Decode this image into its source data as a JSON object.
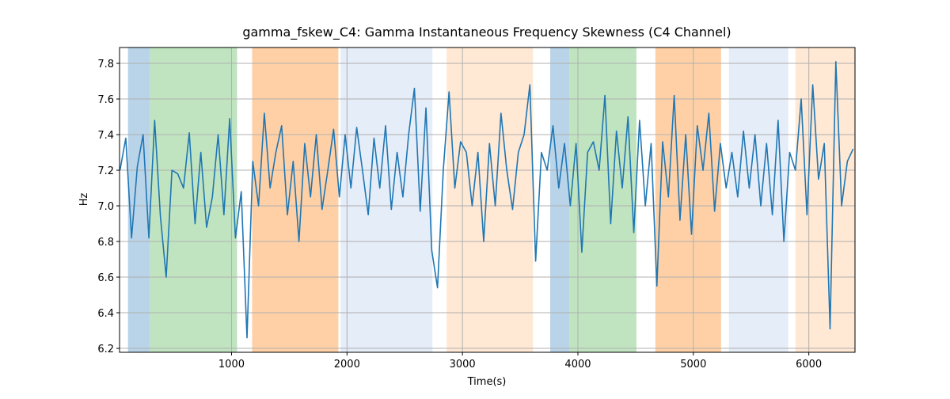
{
  "chart_data": {
    "type": "line",
    "title": "gamma_fskew_C4: Gamma Instantaneous Frequency Skewness (C4 Channel)",
    "x_label": "Time(s)",
    "y_label": "Hz",
    "xlim": [
      30,
      6400
    ],
    "ylim": [
      6.178,
      7.889
    ],
    "xticks": [
      1000,
      2000,
      3000,
      4000,
      5000,
      6000
    ],
    "yticks": [
      6.2,
      6.4,
      6.6,
      6.8,
      {
        "value": 7,
        "label": "7.0"
      },
      7.2,
      7.4,
      7.6,
      7.8
    ],
    "grid": true,
    "spans": [
      {
        "start": 103,
        "end": 295,
        "color": "#b9d4e9"
      },
      {
        "start": 295,
        "end": 1048,
        "color": "#c0e4c0"
      },
      {
        "start": 1178,
        "end": 1925,
        "color": "#ffd0a6"
      },
      {
        "start": 1945,
        "end": 2740,
        "color": "#e5edf8"
      },
      {
        "start": 2863,
        "end": 3610,
        "color": "#ffe8d4"
      },
      {
        "start": 3760,
        "end": 3925,
        "color": "#b9d4e9"
      },
      {
        "start": 3925,
        "end": 4507,
        "color": "#c0e4c0"
      },
      {
        "start": 4671,
        "end": 5240,
        "color": "#ffd0a6"
      },
      {
        "start": 5308,
        "end": 5822,
        "color": "#e5edf8"
      },
      {
        "start": 5884,
        "end": 6400,
        "color": "#ffe8d4"
      }
    ],
    "x": [
      34,
      84,
      134,
      184,
      234,
      284,
      334,
      384,
      434,
      484,
      534,
      584,
      634,
      684,
      734,
      784,
      834,
      884,
      934,
      984,
      1034,
      1084,
      1134,
      1184,
      1234,
      1284,
      1334,
      1384,
      1434,
      1484,
      1534,
      1584,
      1634,
      1684,
      1734,
      1784,
      1834,
      1884,
      1934,
      1984,
      2034,
      2084,
      2134,
      2184,
      2234,
      2284,
      2334,
      2384,
      2434,
      2484,
      2534,
      2584,
      2634,
      2684,
      2734,
      2784,
      2834,
      2884,
      2934,
      2984,
      3034,
      3084,
      3134,
      3184,
      3234,
      3284,
      3334,
      3384,
      3434,
      3484,
      3534,
      3584,
      3634,
      3684,
      3734,
      3784,
      3834,
      3884,
      3934,
      3984,
      4034,
      4084,
      4134,
      4184,
      4234,
      4284,
      4334,
      4384,
      4434,
      4484,
      4534,
      4584,
      4634,
      4684,
      4734,
      4784,
      4834,
      4884,
      4934,
      4984,
      5034,
      5084,
      5134,
      5184,
      5234,
      5284,
      5334,
      5384,
      5434,
      5484,
      5534,
      5584,
      5634,
      5684,
      5734,
      5784,
      5834,
      5884,
      5934,
      5984,
      6034,
      6084,
      6134,
      6184,
      6234,
      6284,
      6334,
      6384
    ],
    "series": [
      {
        "color": "#1f77b4",
        "values": [
          7.2,
          7.38,
          6.82,
          7.22,
          7.4,
          6.82,
          7.48,
          6.94,
          6.6,
          7.2,
          7.18,
          7.1,
          7.41,
          6.9,
          7.3,
          6.88,
          7.05,
          7.4,
          6.95,
          7.49,
          6.82,
          7.08,
          6.26,
          7.25,
          7.0,
          7.52,
          7.1,
          7.3,
          7.45,
          6.95,
          7.25,
          6.8,
          7.35,
          7.05,
          7.4,
          6.98,
          7.2,
          7.43,
          7.05,
          7.4,
          7.1,
          7.44,
          7.2,
          6.95,
          7.38,
          7.1,
          7.45,
          6.98,
          7.3,
          7.05,
          7.4,
          7.66,
          6.97,
          7.55,
          6.75,
          6.54,
          7.2,
          7.64,
          7.1,
          7.36,
          7.3,
          7.0,
          7.3,
          6.8,
          7.35,
          7.0,
          7.52,
          7.2,
          6.98,
          7.3,
          7.4,
          7.68,
          6.69,
          7.3,
          7.2,
          7.45,
          7.1,
          7.35,
          7.0,
          7.35,
          6.74,
          7.3,
          7.36,
          7.2,
          7.62,
          6.9,
          7.42,
          7.1,
          7.5,
          6.85,
          7.48,
          7.0,
          7.35,
          6.55,
          7.36,
          7.05,
          7.62,
          6.92,
          7.4,
          6.84,
          7.45,
          7.2,
          7.52,
          6.97,
          7.35,
          7.1,
          7.3,
          7.05,
          7.42,
          7.1,
          7.4,
          7.0,
          7.35,
          6.95,
          7.48,
          6.8,
          7.3,
          7.2,
          7.6,
          6.95,
          7.68,
          7.15,
          7.35,
          6.31,
          7.81,
          7.0,
          7.25,
          7.32
        ]
      }
    ]
  }
}
